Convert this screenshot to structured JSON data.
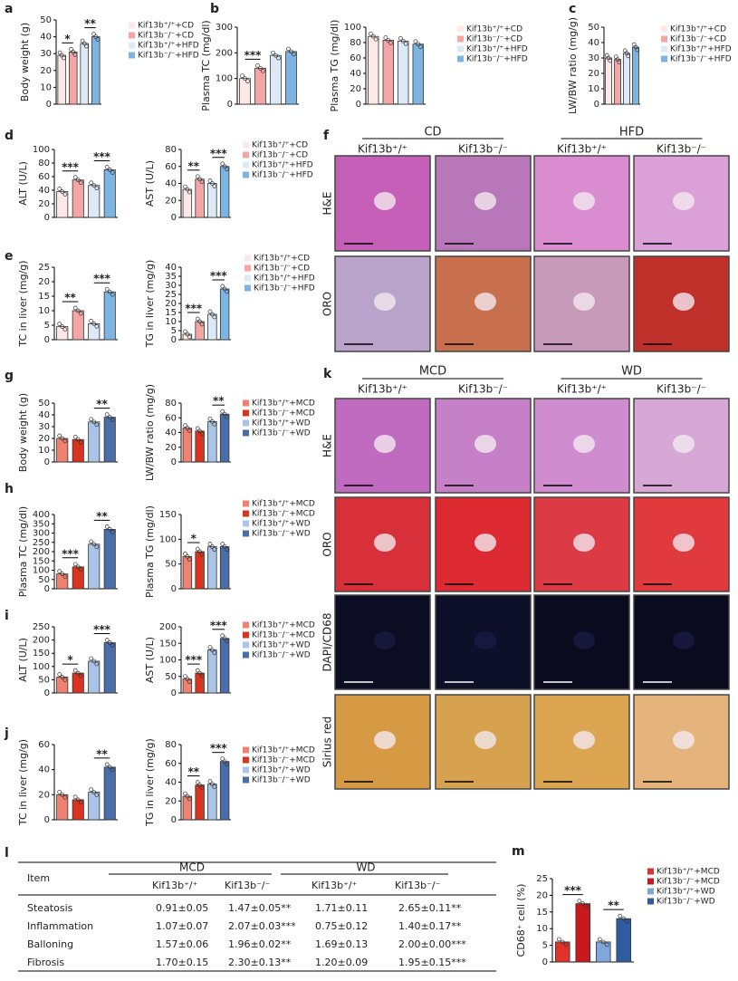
{
  "chart_data": [
    {
      "type": "bar",
      "panel": "a",
      "ylabel": "Body weight (g)",
      "values": [
        29,
        31,
        36,
        40
      ],
      "colors": [
        "#fde8e8",
        "#f4a6a6",
        "#dce9f7",
        "#7db4e2"
      ],
      "ylim": [
        0,
        50
      ],
      "yticks": [
        0,
        10,
        20,
        30,
        40,
        50
      ],
      "significance": [
        "*",
        "**"
      ],
      "legend_labels": [
        "Kif13b⁺/⁺+CD",
        "Kif13b⁻/⁻+CD",
        "Kif13b⁺/⁺+HFD",
        "Kif13b⁻/⁻+HFD"
      ]
    },
    {
      "type": "bar",
      "panel": "b",
      "ylabel": "Plasma TC (mg/dl)",
      "values": [
        100,
        140,
        190,
        205
      ],
      "colors": [
        "#fde8e8",
        "#f4a6a6",
        "#dce9f7",
        "#7db4e2"
      ],
      "ylim": [
        0,
        300
      ],
      "yticks": [
        0,
        100,
        200,
        300
      ],
      "significance": [
        "***",
        null
      ]
    },
    {
      "type": "bar",
      "ylabel": "Plasma TG (mg/dl)",
      "values": [
        88,
        83,
        82,
        78
      ],
      "colors": [
        "#fde8e8",
        "#f4a6a6",
        "#dce9f7",
        "#7db4e2"
      ],
      "ylim": [
        0,
        100
      ],
      "yticks": [
        0,
        20,
        40,
        60,
        80,
        100
      ],
      "significance": [
        null,
        null
      ],
      "legend_labels": [
        "Kif13b⁺/⁺+CD",
        "Kif13b⁻/⁻+CD",
        "Kif13b⁺/⁺+HFD",
        "Kif13b⁻/⁻+HFD"
      ]
    },
    {
      "type": "bar",
      "panel": "c",
      "ylabel": "LW/BW ratio (mg/g)",
      "values": [
        30,
        29,
        33,
        37
      ],
      "colors": [
        "#fde8e8",
        "#f4a6a6",
        "#dce9f7",
        "#7db4e2"
      ],
      "ylim": [
        0,
        50
      ],
      "yticks": [
        0,
        10,
        20,
        30,
        40,
        50
      ],
      "significance": [
        null,
        null
      ],
      "legend_labels": [
        "Kif13b⁺/⁺+CD",
        "Kif13b⁻/⁻+CD",
        "Kif13b⁺/⁺+HFD",
        "Kif13b⁻/⁻+HFD"
      ]
    },
    {
      "type": "bar",
      "panel": "d",
      "ylabel": "ALT (U/L)",
      "values": [
        38,
        55,
        47,
        70
      ],
      "colors": [
        "#fde8e8",
        "#f4a6a6",
        "#dce9f7",
        "#7db4e2"
      ],
      "ylim": [
        0,
        100
      ],
      "yticks": [
        0,
        20,
        40,
        60,
        80,
        100
      ],
      "significance": [
        "***",
        "***"
      ]
    },
    {
      "type": "bar",
      "ylabel": "AST (U/L)",
      "values": [
        33,
        45,
        40,
        60
      ],
      "colors": [
        "#fde8e8",
        "#f4a6a6",
        "#dce9f7",
        "#7db4e2"
      ],
      "ylim": [
        0,
        80
      ],
      "yticks": [
        0,
        20,
        40,
        60,
        80
      ],
      "significance": [
        "**",
        "***"
      ],
      "legend_labels": [
        "Kif13b⁺/⁺+CD",
        "Kif13b⁻/⁻+CD",
        "Kif13b⁺/⁺+HFD",
        "Kif13b⁻/⁻+HFD"
      ]
    },
    {
      "type": "bar",
      "panel": "e",
      "ylabel": "TC in liver (mg/g)",
      "values": [
        4.5,
        10,
        5.5,
        16.5
      ],
      "colors": [
        "#fde8e8",
        "#f4a6a6",
        "#dce9f7",
        "#7db4e2"
      ],
      "ylim": [
        0,
        25
      ],
      "yticks": [
        0,
        5,
        10,
        15,
        20,
        25
      ],
      "significance": [
        "**",
        "***"
      ]
    },
    {
      "type": "bar",
      "ylabel": "TG in liver (mg/g)",
      "values": [
        3,
        10,
        14,
        28
      ],
      "colors": [
        "#fde8e8",
        "#f4a6a6",
        "#dce9f7",
        "#7db4e2"
      ],
      "ylim": [
        0,
        40
      ],
      "yticks": [
        0,
        5,
        10,
        15,
        20,
        25,
        30,
        35,
        40
      ],
      "significance": [
        "***",
        "***"
      ],
      "legend_labels": [
        "Kif13b⁺/⁺+CD",
        "Kif13b⁻/⁻+CD",
        "Kif13b⁺/⁺+HFD",
        "Kif13b⁻/⁻+HFD"
      ]
    },
    {
      "type": "bar",
      "panel": "g",
      "ylabel": "Body weight (g)",
      "values": [
        20,
        19,
        34,
        38
      ],
      "colors": [
        "#f08070",
        "#d9341f",
        "#a9c4e6",
        "#4a6fa8"
      ],
      "ylim": [
        0,
        50
      ],
      "yticks": [
        0,
        10,
        20,
        30,
        40,
        50
      ],
      "significance": [
        null,
        "**"
      ]
    },
    {
      "type": "bar",
      "ylabel": "LW/BW ratio (mg/g)",
      "values": [
        46,
        42,
        55,
        65
      ],
      "colors": [
        "#f08070",
        "#d9341f",
        "#a9c4e6",
        "#4a6fa8"
      ],
      "ylim": [
        0,
        80
      ],
      "yticks": [
        0,
        20,
        40,
        60,
        80
      ],
      "significance": [
        null,
        "**"
      ],
      "legend_labels": [
        "Kif13b⁺/⁺+MCD",
        "Kif13b⁻/⁻+MCD",
        "Kif13b⁺/⁺+WD",
        "Kif13b⁻/⁻+WD"
      ]
    },
    {
      "type": "bar",
      "panel": "h",
      "ylabel": "Plasma TC (mg/dl)",
      "values": [
        80,
        118,
        240,
        320
      ],
      "colors": [
        "#f08070",
        "#d9341f",
        "#a9c4e6",
        "#4a6fa8"
      ],
      "ylim": [
        0,
        400
      ],
      "yticks": [
        0,
        50,
        100,
        150,
        200,
        250,
        300,
        350,
        400
      ],
      "significance": [
        "***",
        "**"
      ]
    },
    {
      "type": "bar",
      "ylabel": "Plasma TG (mg/dl)",
      "values": [
        65,
        75,
        85,
        85
      ],
      "colors": [
        "#f08070",
        "#d9341f",
        "#a9c4e6",
        "#4a6fa8"
      ],
      "ylim": [
        0,
        150
      ],
      "yticks": [
        0,
        50,
        100,
        150
      ],
      "significance": [
        "*",
        null
      ],
      "legend_labels": [
        "Kif13b⁺/⁺+MCD",
        "Kif13b⁻/⁻+MCD",
        "Kif13b⁺/⁺+WD",
        "Kif13b⁻/⁻+WD"
      ]
    },
    {
      "type": "bar",
      "panel": "i",
      "ylabel": "ALT (U/L)",
      "values": [
        60,
        75,
        120,
        190
      ],
      "colors": [
        "#f08070",
        "#d9341f",
        "#a9c4e6",
        "#4a6fa8"
      ],
      "ylim": [
        0,
        250
      ],
      "yticks": [
        0,
        50,
        100,
        150,
        200,
        250
      ],
      "significance": [
        "*",
        "***"
      ]
    },
    {
      "type": "bar",
      "ylabel": "AST (U/L)",
      "values": [
        42,
        60,
        130,
        165
      ],
      "colors": [
        "#f08070",
        "#d9341f",
        "#a9c4e6",
        "#4a6fa8"
      ],
      "ylim": [
        0,
        200
      ],
      "yticks": [
        0,
        50,
        100,
        150,
        200
      ],
      "significance": [
        "***",
        "***"
      ],
      "legend_labels": [
        "Kif13b⁺/⁺+MCD",
        "Kif13b⁻/⁻+MCD",
        "Kif13b⁺/⁺+WD",
        "Kif13b⁻/⁻+WD"
      ]
    },
    {
      "type": "bar",
      "panel": "j",
      "ylabel": "TC in liver (mg/g)",
      "values": [
        20,
        16,
        22,
        42
      ],
      "colors": [
        "#f08070",
        "#d9341f",
        "#a9c4e6",
        "#4a6fa8"
      ],
      "ylim": [
        0,
        60
      ],
      "yticks": [
        0,
        20,
        40,
        60
      ],
      "significance": [
        null,
        "**"
      ]
    },
    {
      "type": "bar",
      "ylabel": "TG in liver (mg/g)",
      "values": [
        25,
        37,
        38,
        62
      ],
      "colors": [
        "#f08070",
        "#d9341f",
        "#a9c4e6",
        "#4a6fa8"
      ],
      "ylim": [
        0,
        80
      ],
      "yticks": [
        0,
        20,
        40,
        60,
        80
      ],
      "significance": [
        "**",
        "***"
      ],
      "legend_labels": [
        "Kif13b⁺/⁺+MCD",
        "Kif13b⁻/⁻+MCD",
        "Kif13b⁺/⁺+WD",
        "Kif13b⁻/⁻+WD"
      ]
    },
    {
      "type": "bar",
      "panel": "m",
      "ylabel": "CD68⁺ cell (%)",
      "values": [
        6,
        17.5,
        6,
        13
      ],
      "colors": [
        "#e0322a",
        "#c9181e",
        "#7fa7dc",
        "#2f5c9e"
      ],
      "ylim": [
        0,
        25
      ],
      "yticks": [
        0,
        5,
        10,
        15,
        20,
        25
      ],
      "significance": [
        "***",
        "**"
      ],
      "legend_labels": [
        "Kif13b⁺/⁺+MCD",
        "Kif13b⁻/⁻+MCD",
        "Kif13b⁺/⁺+WD",
        "Kif13b⁻/⁻+WD"
      ]
    }
  ],
  "images": [
    {
      "panel": "f",
      "groups": [
        "CD",
        "HFD"
      ],
      "genotypes": [
        "Kif13b⁺/⁺",
        "Kif13b⁻/⁻",
        "Kif13b⁺/⁺",
        "Kif13b⁻/⁻"
      ],
      "rows": [
        "H&E",
        "ORO"
      ]
    },
    {
      "panel": "k",
      "groups": [
        "MCD",
        "WD"
      ],
      "genotypes": [
        "Kif13b⁺/⁺",
        "Kif13b⁻/⁻",
        "Kif13b⁺/⁺",
        "Kif13b⁻/⁻"
      ],
      "rows": [
        "H&E",
        "ORO",
        "DAPI/CD68",
        "Sirius red"
      ]
    }
  ],
  "table": {
    "panel": "l",
    "columns": [
      "Item",
      "MCD",
      "WD"
    ],
    "subcolumns": [
      "Kif13b⁺/⁺",
      "Kif13b⁻/⁻",
      "Kif13b⁺/⁺",
      "Kif13b⁻/⁻"
    ],
    "rows": [
      [
        "Steatosis",
        "0.91±0.05",
        "1.47±0.05**",
        "1.71±0.11",
        "2.65±0.11**"
      ],
      [
        "Inflammation",
        "1.07±0.07",
        "2.07±0.03***",
        "0.75±0.12",
        "1.40±0.17**"
      ],
      [
        "Balloning",
        "1.57±0.06",
        "1.96±0.02**",
        "1.69±0.13",
        "2.00±0.00***"
      ],
      [
        "Fibrosis",
        "1.70±0.15",
        "2.30±0.13**",
        "1.20±0.09",
        "1.95±0.15***"
      ]
    ]
  }
}
